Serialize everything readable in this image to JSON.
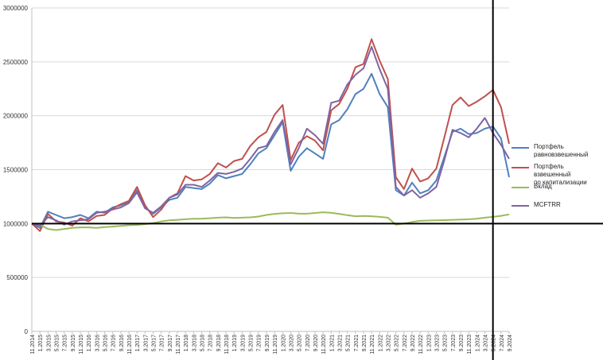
{
  "chart_data": {
    "type": "line",
    "title": "",
    "xlabel": "",
    "ylabel": "",
    "ylim": [
      0,
      3000000
    ],
    "yticks": [
      0,
      500000,
      1000000,
      1500000,
      2000000,
      2500000,
      3000000
    ],
    "ytick_labels": [
      "0",
      "500000",
      "1000000",
      "1500000",
      "2000000",
      "2500000",
      "3000000"
    ],
    "x_start": "11.2014",
    "x_end": "9.2024",
    "xtick_labels": [
      "11.2014",
      "1.2015",
      "3.2015",
      "5.2015",
      "7.2015",
      "9.2015",
      "11.2015",
      "1.2016",
      "3.2016",
      "5.2016",
      "7.2016",
      "9.2016",
      "11.2016",
      "1.2017",
      "3.2017",
      "5.2017",
      "7.2017",
      "9.2017",
      "11.2017",
      "1.2018",
      "3.2018",
      "5.2018",
      "7.2018",
      "9.2018",
      "11.2018",
      "1.2019",
      "3.2019",
      "5.2019",
      "7.2019",
      "9.2019",
      "11.2019",
      "1.2020",
      "3.2020",
      "5.2020",
      "7.2020",
      "9.2020",
      "11.2020",
      "1.2021",
      "3.2021",
      "5.2021",
      "7.2021",
      "9.2021",
      "11.2021",
      "1.2022",
      "3.2022",
      "5.2022",
      "7.2022",
      "9.2022",
      "11.2022",
      "1.2023",
      "3.2023",
      "5.2023",
      "7.2023",
      "9.2023",
      "11.2023",
      "1.2024",
      "3.2024",
      "5.2024",
      "7.2024",
      "9.2024"
    ],
    "grid": true,
    "legend_position": "right",
    "reference_lines": {
      "horizontal_y": 1000000,
      "vertical_x": "5.2024"
    },
    "series": [
      {
        "name": "Портфель\nравновзвешенный",
        "color": "#4f81bd",
        "points": [
          [
            "11.2014",
            1000000
          ],
          [
            "1.2015",
            960000
          ],
          [
            "3.2015",
            1110000
          ],
          [
            "5.2015",
            1080000
          ],
          [
            "7.2015",
            1050000
          ],
          [
            "9.2015",
            1060000
          ],
          [
            "11.2015",
            1080000
          ],
          [
            "1.2016",
            1050000
          ],
          [
            "3.2016",
            1110000
          ],
          [
            "5.2016",
            1100000
          ],
          [
            "7.2016",
            1150000
          ],
          [
            "9.2016",
            1170000
          ],
          [
            "11.2016",
            1200000
          ],
          [
            "1.2017",
            1310000
          ],
          [
            "3.2017",
            1150000
          ],
          [
            "5.2017",
            1090000
          ],
          [
            "7.2017",
            1150000
          ],
          [
            "9.2017",
            1220000
          ],
          [
            "11.2017",
            1240000
          ],
          [
            "1.2018",
            1340000
          ],
          [
            "3.2018",
            1330000
          ],
          [
            "5.2018",
            1320000
          ],
          [
            "7.2018",
            1370000
          ],
          [
            "9.2018",
            1450000
          ],
          [
            "11.2018",
            1420000
          ],
          [
            "1.2019",
            1440000
          ],
          [
            "3.2019",
            1460000
          ],
          [
            "5.2019",
            1550000
          ],
          [
            "7.2019",
            1650000
          ],
          [
            "9.2019",
            1700000
          ],
          [
            "11.2019",
            1820000
          ],
          [
            "1.2020",
            1940000
          ],
          [
            "3.2020",
            1490000
          ],
          [
            "5.2020",
            1620000
          ],
          [
            "7.2020",
            1700000
          ],
          [
            "9.2020",
            1650000
          ],
          [
            "11.2020",
            1600000
          ],
          [
            "1.2021",
            1920000
          ],
          [
            "3.2021",
            1960000
          ],
          [
            "5.2021",
            2060000
          ],
          [
            "7.2021",
            2200000
          ],
          [
            "9.2021",
            2250000
          ],
          [
            "11.2021",
            2390000
          ],
          [
            "1.2022",
            2200000
          ],
          [
            "3.2022",
            2080000
          ],
          [
            "5.2022",
            1310000
          ],
          [
            "7.2022",
            1260000
          ],
          [
            "9.2022",
            1380000
          ],
          [
            "11.2022",
            1280000
          ],
          [
            "1.2023",
            1310000
          ],
          [
            "3.2023",
            1400000
          ],
          [
            "5.2023",
            1620000
          ],
          [
            "7.2023",
            1850000
          ],
          [
            "9.2023",
            1880000
          ],
          [
            "11.2023",
            1830000
          ],
          [
            "1.2024",
            1840000
          ],
          [
            "3.2024",
            1880000
          ],
          [
            "5.2024",
            1900000
          ],
          [
            "7.2024",
            1790000
          ],
          [
            "9.2024",
            1430000
          ]
        ]
      },
      {
        "name": "Портфель взвешенный\nпо капитализации",
        "color": "#c0504d",
        "points": [
          [
            "11.2014",
            1000000
          ],
          [
            "1.2015",
            930000
          ],
          [
            "3.2015",
            1090000
          ],
          [
            "5.2015",
            1020000
          ],
          [
            "7.2015",
            1010000
          ],
          [
            "9.2015",
            980000
          ],
          [
            "11.2015",
            1050000
          ],
          [
            "1.2016",
            1020000
          ],
          [
            "3.2016",
            1070000
          ],
          [
            "5.2016",
            1080000
          ],
          [
            "7.2016",
            1140000
          ],
          [
            "9.2016",
            1180000
          ],
          [
            "11.2016",
            1210000
          ],
          [
            "1.2017",
            1340000
          ],
          [
            "3.2017",
            1170000
          ],
          [
            "5.2017",
            1060000
          ],
          [
            "7.2017",
            1130000
          ],
          [
            "9.2017",
            1240000
          ],
          [
            "11.2017",
            1280000
          ],
          [
            "1.2018",
            1440000
          ],
          [
            "3.2018",
            1400000
          ],
          [
            "5.2018",
            1410000
          ],
          [
            "7.2018",
            1460000
          ],
          [
            "9.2018",
            1560000
          ],
          [
            "11.2018",
            1520000
          ],
          [
            "1.2019",
            1580000
          ],
          [
            "3.2019",
            1600000
          ],
          [
            "5.2019",
            1720000
          ],
          [
            "7.2019",
            1800000
          ],
          [
            "9.2019",
            1850000
          ],
          [
            "11.2019",
            2010000
          ],
          [
            "1.2020",
            2100000
          ],
          [
            "3.2020",
            1590000
          ],
          [
            "5.2020",
            1750000
          ],
          [
            "7.2020",
            1810000
          ],
          [
            "9.2020",
            1770000
          ],
          [
            "11.2020",
            1680000
          ],
          [
            "1.2021",
            2050000
          ],
          [
            "3.2021",
            2110000
          ],
          [
            "5.2021",
            2250000
          ],
          [
            "7.2021",
            2450000
          ],
          [
            "9.2021",
            2480000
          ],
          [
            "11.2021",
            2710000
          ],
          [
            "1.2022",
            2510000
          ],
          [
            "3.2022",
            2340000
          ],
          [
            "5.2022",
            1430000
          ],
          [
            "7.2022",
            1320000
          ],
          [
            "9.2022",
            1510000
          ],
          [
            "11.2022",
            1390000
          ],
          [
            "1.2023",
            1420000
          ],
          [
            "3.2023",
            1510000
          ],
          [
            "5.2023",
            1800000
          ],
          [
            "7.2023",
            2100000
          ],
          [
            "9.2023",
            2170000
          ],
          [
            "11.2023",
            2090000
          ],
          [
            "1.2024",
            2130000
          ],
          [
            "3.2024",
            2180000
          ],
          [
            "5.2024",
            2240000
          ],
          [
            "7.2024",
            2080000
          ],
          [
            "9.2024",
            1740000
          ]
        ]
      },
      {
        "name": "Вклад",
        "color": "#9bbb59",
        "points": [
          [
            "11.2014",
            1000000
          ],
          [
            "1.2015",
            990000
          ],
          [
            "3.2015",
            950000
          ],
          [
            "5.2015",
            940000
          ],
          [
            "7.2015",
            950000
          ],
          [
            "9.2015",
            960000
          ],
          [
            "11.2015",
            965000
          ],
          [
            "1.2016",
            965000
          ],
          [
            "3.2016",
            960000
          ],
          [
            "5.2016",
            968000
          ],
          [
            "7.2016",
            972000
          ],
          [
            "9.2016",
            978000
          ],
          [
            "11.2016",
            985000
          ],
          [
            "1.2017",
            988000
          ],
          [
            "3.2017",
            995000
          ],
          [
            "5.2017",
            1005000
          ],
          [
            "7.2017",
            1020000
          ],
          [
            "9.2017",
            1030000
          ],
          [
            "11.2017",
            1035000
          ],
          [
            "1.2018",
            1040000
          ],
          [
            "3.2018",
            1045000
          ],
          [
            "5.2018",
            1045000
          ],
          [
            "7.2018",
            1050000
          ],
          [
            "9.2018",
            1055000
          ],
          [
            "11.2018",
            1058000
          ],
          [
            "1.2019",
            1052000
          ],
          [
            "3.2019",
            1055000
          ],
          [
            "5.2019",
            1058000
          ],
          [
            "7.2019",
            1065000
          ],
          [
            "9.2019",
            1080000
          ],
          [
            "11.2019",
            1090000
          ],
          [
            "1.2020",
            1095000
          ],
          [
            "3.2020",
            1098000
          ],
          [
            "5.2020",
            1092000
          ],
          [
            "7.2020",
            1092000
          ],
          [
            "9.2020",
            1098000
          ],
          [
            "11.2020",
            1105000
          ],
          [
            "1.2021",
            1100000
          ],
          [
            "3.2021",
            1090000
          ],
          [
            "5.2021",
            1078000
          ],
          [
            "7.2021",
            1068000
          ],
          [
            "9.2021",
            1070000
          ],
          [
            "11.2021",
            1068000
          ],
          [
            "1.2022",
            1062000
          ],
          [
            "3.2022",
            1055000
          ],
          [
            "5.2022",
            990000
          ],
          [
            "7.2022",
            1000000
          ],
          [
            "9.2022",
            1015000
          ],
          [
            "11.2022",
            1025000
          ],
          [
            "1.2023",
            1028000
          ],
          [
            "3.2023",
            1030000
          ],
          [
            "5.2023",
            1032000
          ],
          [
            "7.2023",
            1035000
          ],
          [
            "9.2023",
            1038000
          ],
          [
            "11.2023",
            1040000
          ],
          [
            "1.2024",
            1045000
          ],
          [
            "3.2024",
            1055000
          ],
          [
            "5.2024",
            1062000
          ],
          [
            "7.2024",
            1072000
          ],
          [
            "9.2024",
            1085000
          ]
        ]
      },
      {
        "name": "MCFTRR",
        "color": "#8064a2",
        "points": [
          [
            "11.2014",
            1000000
          ],
          [
            "1.2015",
            980000
          ],
          [
            "3.2015",
            1060000
          ],
          [
            "5.2015",
            1030000
          ],
          [
            "7.2015",
            990000
          ],
          [
            "9.2015",
            1020000
          ],
          [
            "11.2015",
            1030000
          ],
          [
            "1.2016",
            1040000
          ],
          [
            "3.2016",
            1100000
          ],
          [
            "5.2016",
            1110000
          ],
          [
            "7.2016",
            1130000
          ],
          [
            "9.2016",
            1150000
          ],
          [
            "11.2016",
            1190000
          ],
          [
            "1.2017",
            1290000
          ],
          [
            "3.2017",
            1140000
          ],
          [
            "5.2017",
            1100000
          ],
          [
            "7.2017",
            1160000
          ],
          [
            "9.2017",
            1240000
          ],
          [
            "11.2017",
            1270000
          ],
          [
            "1.2018",
            1360000
          ],
          [
            "3.2018",
            1360000
          ],
          [
            "5.2018",
            1340000
          ],
          [
            "7.2018",
            1400000
          ],
          [
            "9.2018",
            1470000
          ],
          [
            "11.2018",
            1460000
          ],
          [
            "1.2019",
            1480000
          ],
          [
            "3.2019",
            1510000
          ],
          [
            "5.2019",
            1600000
          ],
          [
            "7.2019",
            1700000
          ],
          [
            "9.2019",
            1720000
          ],
          [
            "11.2019",
            1850000
          ],
          [
            "1.2020",
            1960000
          ],
          [
            "3.2020",
            1550000
          ],
          [
            "5.2020",
            1700000
          ],
          [
            "7.2020",
            1880000
          ],
          [
            "9.2020",
            1820000
          ],
          [
            "11.2020",
            1740000
          ],
          [
            "1.2021",
            2120000
          ],
          [
            "3.2021",
            2140000
          ],
          [
            "5.2021",
            2290000
          ],
          [
            "7.2021",
            2380000
          ],
          [
            "9.2021",
            2440000
          ],
          [
            "11.2021",
            2640000
          ],
          [
            "1.2022",
            2430000
          ],
          [
            "3.2022",
            2250000
          ],
          [
            "5.2022",
            1340000
          ],
          [
            "7.2022",
            1260000
          ],
          [
            "9.2022",
            1310000
          ],
          [
            "11.2022",
            1240000
          ],
          [
            "1.2023",
            1280000
          ],
          [
            "3.2023",
            1340000
          ],
          [
            "5.2023",
            1590000
          ],
          [
            "7.2023",
            1870000
          ],
          [
            "9.2023",
            1840000
          ],
          [
            "11.2023",
            1800000
          ],
          [
            "1.2024",
            1880000
          ],
          [
            "3.2024",
            1980000
          ],
          [
            "5.2024",
            1840000
          ],
          [
            "7.2024",
            1730000
          ],
          [
            "9.2024",
            1600000
          ]
        ]
      }
    ]
  }
}
